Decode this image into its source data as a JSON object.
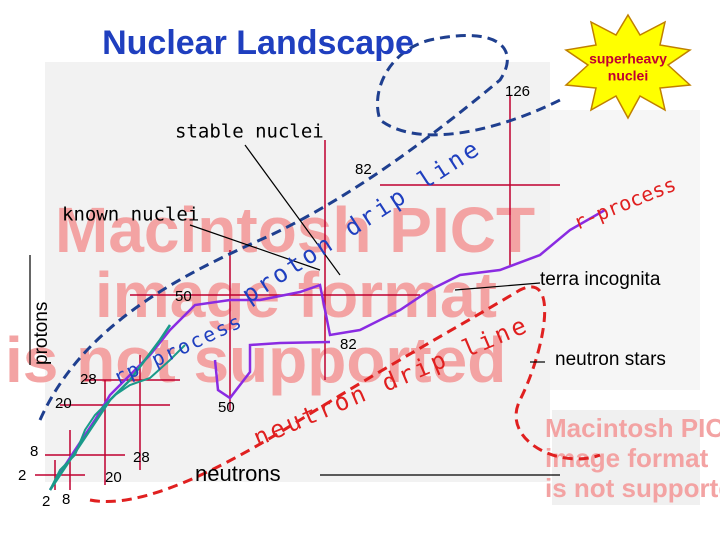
{
  "title": "Nuclear Landscape",
  "callout": [
    "superheavy",
    "nuclei"
  ],
  "labels": {
    "stable": "stable nuclei",
    "known": "known nuclei",
    "terra": "terra incognita",
    "stars": "neutron stars",
    "neutrons": "neutrons",
    "protons": "protons",
    "proton_drip": "proton drip line",
    "neutron_drip": "neutron drip line",
    "r_process": "r-process",
    "rp_process": "rp process"
  },
  "magic": {
    "n126": "126",
    "z82": "82",
    "z50": "50",
    "n82": "82",
    "n50": "50",
    "z28": "28",
    "z20": "20",
    "z8": "8",
    "n28": "28",
    "n20": "20",
    "z2": "2",
    "n2": "2",
    "n8": "8"
  },
  "placeholder": [
    "Macintosh PICT",
    "image format",
    "is not supported"
  ],
  "placeholder_small": [
    "Macintosh PICT",
    "image format",
    "is not supported"
  ]
}
